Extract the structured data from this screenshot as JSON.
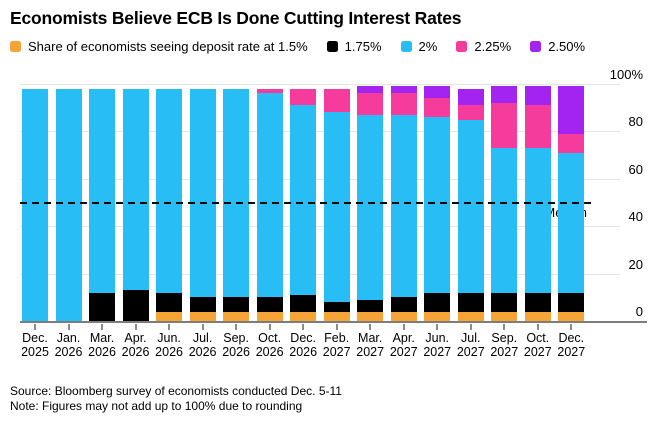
{
  "title": "Economists Believe ECB Is Done Cutting Interest Rates",
  "legend": {
    "items": [
      {
        "label": "Share of economists seeing deposit rate at 1.5%"
      },
      {
        "label": "1.75%"
      },
      {
        "label": "2%"
      },
      {
        "label": "2.25%"
      },
      {
        "label": "2.50%"
      }
    ]
  },
  "chart_data": {
    "type": "bar",
    "stacked": true,
    "title": "Economists Believe ECB Is Done Cutting Interest Rates",
    "unit": "percent share of economists",
    "grid": true,
    "legend_position": "top",
    "ylim": [
      0,
      100
    ],
    "yticks": [
      {
        "label": "100%",
        "value": 100
      },
      {
        "label": "80",
        "value": 80
      },
      {
        "label": "60",
        "value": 60
      },
      {
        "label": "40",
        "value": 40
      },
      {
        "label": "20",
        "value": 20
      },
      {
        "label": "0",
        "value": 0
      }
    ],
    "median_line": {
      "label": "Median",
      "value": 50
    },
    "categories": [
      "Dec. 2025",
      "Jan. 2026",
      "Mar. 2026",
      "Apr. 2026",
      "Jun. 2026",
      "Jul. 2026",
      "Sep. 2026",
      "Oct. 2026",
      "Dec. 2026",
      "Feb. 2027",
      "Mar. 2027",
      "Apr. 2027",
      "Jun. 2027",
      "Jul. 2027",
      "Sep. 2027",
      "Oct. 2027",
      "Dec. 2027"
    ],
    "series": [
      {
        "name": "1.5%",
        "color": "#F7A436",
        "values": [
          0,
          0,
          0,
          0,
          4,
          4,
          4,
          4,
          4,
          4,
          4,
          4,
          4,
          4,
          4,
          4,
          4
        ]
      },
      {
        "name": "1.75%",
        "color": "#000000",
        "values": [
          0,
          0,
          12,
          13,
          8,
          6,
          6,
          6,
          7,
          4,
          5,
          6,
          8,
          8,
          8,
          8,
          8
        ]
      },
      {
        "name": "2%",
        "color": "#29BDF5",
        "values": [
          98,
          98,
          86,
          85,
          86,
          88,
          88,
          86,
          80,
          80,
          78,
          77,
          74,
          73,
          61,
          61,
          59
        ]
      },
      {
        "name": "2.25%",
        "color": "#F53C9C",
        "values": [
          0,
          0,
          0,
          0,
          0,
          0,
          0,
          2,
          7,
          10,
          9,
          9,
          8,
          6,
          19,
          18,
          8
        ]
      },
      {
        "name": "2.50%",
        "color": "#A324F0",
        "values": [
          0,
          0,
          0,
          0,
          0,
          0,
          0,
          0,
          0,
          0,
          3,
          3,
          5,
          7,
          7,
          8,
          20
        ]
      }
    ]
  },
  "footer": {
    "source": "Source: Bloomberg survey of economists conducted Dec. 5-11",
    "note": "Note: Figures may not add up to 100% due to rounding"
  }
}
